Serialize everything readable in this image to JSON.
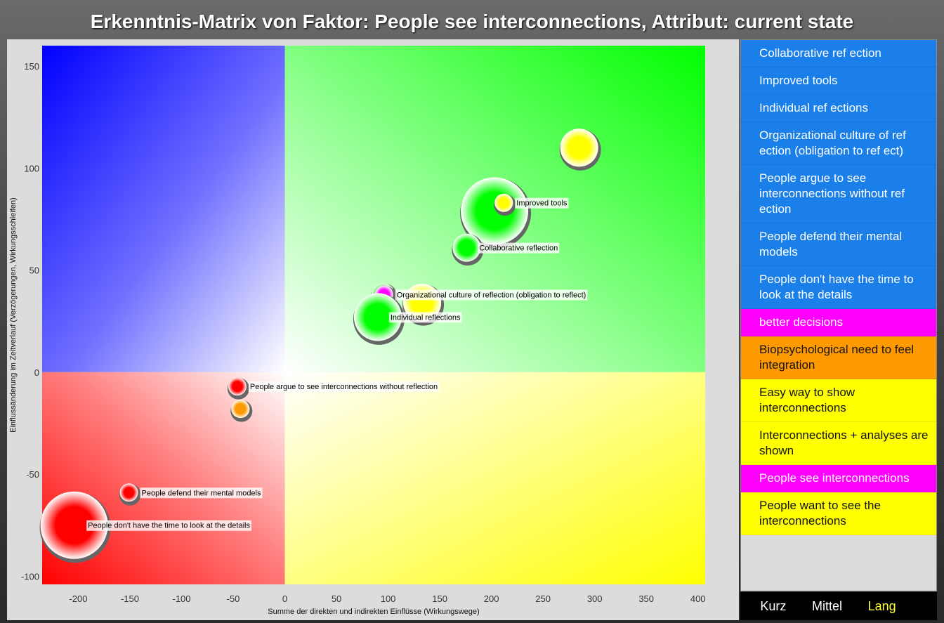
{
  "title": "Erkenntnis-Matrix von Faktor: People see interconnections, Attribut: current state",
  "legend": [
    {
      "label": "Collaborative ref ection",
      "color": "#1a7fe8",
      "text_color": "#ffffff"
    },
    {
      "label": "Improved tools",
      "color": "#1a7fe8",
      "text_color": "#ffffff"
    },
    {
      "label": "Individual ref ections",
      "color": "#1a7fe8",
      "text_color": "#ffffff"
    },
    {
      "label": "Organizational culture of ref ection (obligation to ref ect)",
      "color": "#1a7fe8",
      "text_color": "#ffffff"
    },
    {
      "label": "People argue to see interconnections without ref ection",
      "color": "#1a7fe8",
      "text_color": "#ffffff"
    },
    {
      "label": "People defend their mental models",
      "color": "#1a7fe8",
      "text_color": "#ffffff"
    },
    {
      "label": "People don't have the time to look at the details",
      "color": "#1a7fe8",
      "text_color": "#ffffff"
    },
    {
      "label": "better decisions",
      "color": "#ff00ff",
      "text_color": "#ffffff"
    },
    {
      "label": "Biopsychological need to feel integration",
      "color": "#ff9900",
      "text_color": "#111111"
    },
    {
      "label": "Easy way to show interconnections",
      "color": "#ffff00",
      "text_color": "#111111"
    },
    {
      "label": "Interconnections + analyses are shown",
      "color": "#ffff00",
      "text_color": "#111111"
    },
    {
      "label": "People see interconnections",
      "color": "#ff00ff",
      "text_color": "#ffffff"
    },
    {
      "label": "People want to see the interconnections",
      "color": "#ffff00",
      "text_color": "#111111"
    }
  ],
  "time_buttons": {
    "short": "Kurz",
    "medium": "Mittel",
    "long": "Lang",
    "active": "long"
  },
  "chart_data": {
    "type": "scatter",
    "subtype": "bubble",
    "title": "Erkenntnis-Matrix von Faktor: People see interconnections, Attribut: current state",
    "xlabel": "Summe der direkten und indirekten Einflüsse (Wirkungswege)",
    "ylabel": "Einflussänderung im Zeitverlauf (Verzögerungen, Wirkungsschleifen)",
    "xlim": [
      -235,
      407
    ],
    "ylim": [
      -104,
      160
    ],
    "xticks": [
      -200,
      -150,
      -100,
      -50,
      0,
      50,
      100,
      150,
      200,
      250,
      300,
      350,
      400
    ],
    "yticks": [
      -100,
      -50,
      0,
      50,
      100,
      150
    ],
    "quadrant_colors": {
      "top_left": "#0000ff",
      "top_right": "#00ff00",
      "bottom_left": "#ff0000",
      "bottom_right": "#ffff00"
    },
    "points": [
      {
        "label": "",
        "x": 285,
        "y": 110,
        "size": 3,
        "color": "#ffff00"
      },
      {
        "label": "",
        "x": 203,
        "y": 79,
        "size": 6,
        "color": "#00ff00"
      },
      {
        "label": "Improved tools",
        "x": 212,
        "y": 83,
        "size": 1,
        "color": "#ffff00"
      },
      {
        "label": "Collaborative reflection",
        "x": 176,
        "y": 61,
        "size": 2,
        "color": "#00ff00"
      },
      {
        "label": "",
        "x": 133,
        "y": 34,
        "size": 3,
        "color": "#ffff00"
      },
      {
        "label": "",
        "x": 95,
        "y": 38,
        "size": 1.5,
        "color": "#00ff00"
      },
      {
        "label": "Organizational culture of reflection (obligation to reflect)",
        "x": 96,
        "y": 38,
        "size": 1,
        "color": "#ff00ff"
      },
      {
        "label": "Individual reflections",
        "x": 90,
        "y": 27,
        "size": 4,
        "color": "#00ff00"
      },
      {
        "label": "People argue to see interconnections without reflection",
        "x": -46,
        "y": -7,
        "size": 1,
        "color": "#ff0000"
      },
      {
        "label": "",
        "x": -43,
        "y": -18,
        "size": 1,
        "color": "#ff9900"
      },
      {
        "label": "People defend their mental models",
        "x": -151,
        "y": -59,
        "size": 1,
        "color": "#ff0000"
      },
      {
        "label": "People don't have the time to look at the details",
        "x": -204,
        "y": -75,
        "size": 6,
        "color": "#ff0000"
      }
    ]
  }
}
